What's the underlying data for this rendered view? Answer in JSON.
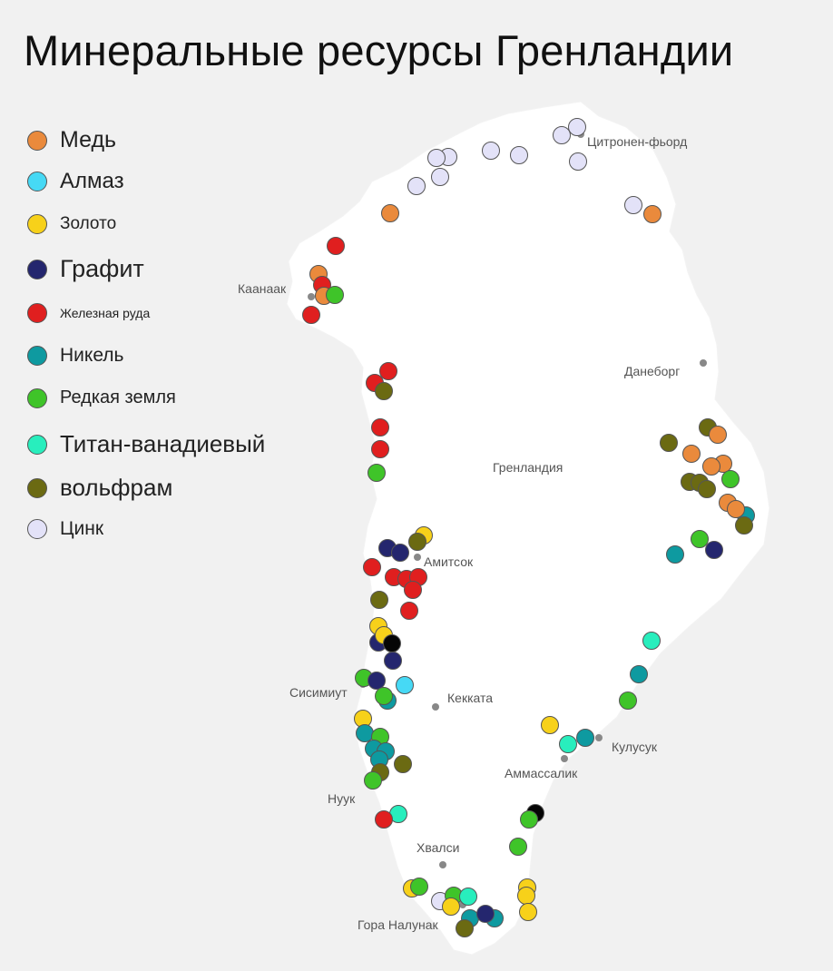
{
  "title": "Минеральные ресурсы Гренландии",
  "legend": [
    {
      "key": "copper",
      "label": "Медь",
      "color": "#ea8a3c"
    },
    {
      "key": "diamond",
      "label": "Алмаз",
      "color": "#46d9f5"
    },
    {
      "key": "gold",
      "label": "Золото",
      "color": "#f7d11a"
    },
    {
      "key": "graphite",
      "label": "Графит",
      "color": "#24266e"
    },
    {
      "key": "iron",
      "label": "Железная руда",
      "color": "#e01f1f"
    },
    {
      "key": "nickel",
      "label": "Никель",
      "color": "#0e9aa0"
    },
    {
      "key": "rare",
      "label": "Редкая земля",
      "color": "#3fc429"
    },
    {
      "key": "titanium",
      "label": "Титан-ванадиевый",
      "color": "#28eebd"
    },
    {
      "key": "tungsten",
      "label": "вольфрам",
      "color": "#6b6a12"
    },
    {
      "key": "zinc",
      "label": "Цинк",
      "color": "#e3e2f8"
    }
  ],
  "cities": [
    {
      "name": "Цитронен-фьорд"
    },
    {
      "name": "Каанаак"
    },
    {
      "name": "Данеборг"
    },
    {
      "name": "Гренландия"
    },
    {
      "name": "Амитсок"
    },
    {
      "name": "Сисимиут"
    },
    {
      "name": "Кекката"
    },
    {
      "name": "Кулусук"
    },
    {
      "name": "Аммассалик"
    },
    {
      "name": "Нуук"
    },
    {
      "name": "Хвалси"
    },
    {
      "name": "Гора Налунак"
    }
  ]
}
